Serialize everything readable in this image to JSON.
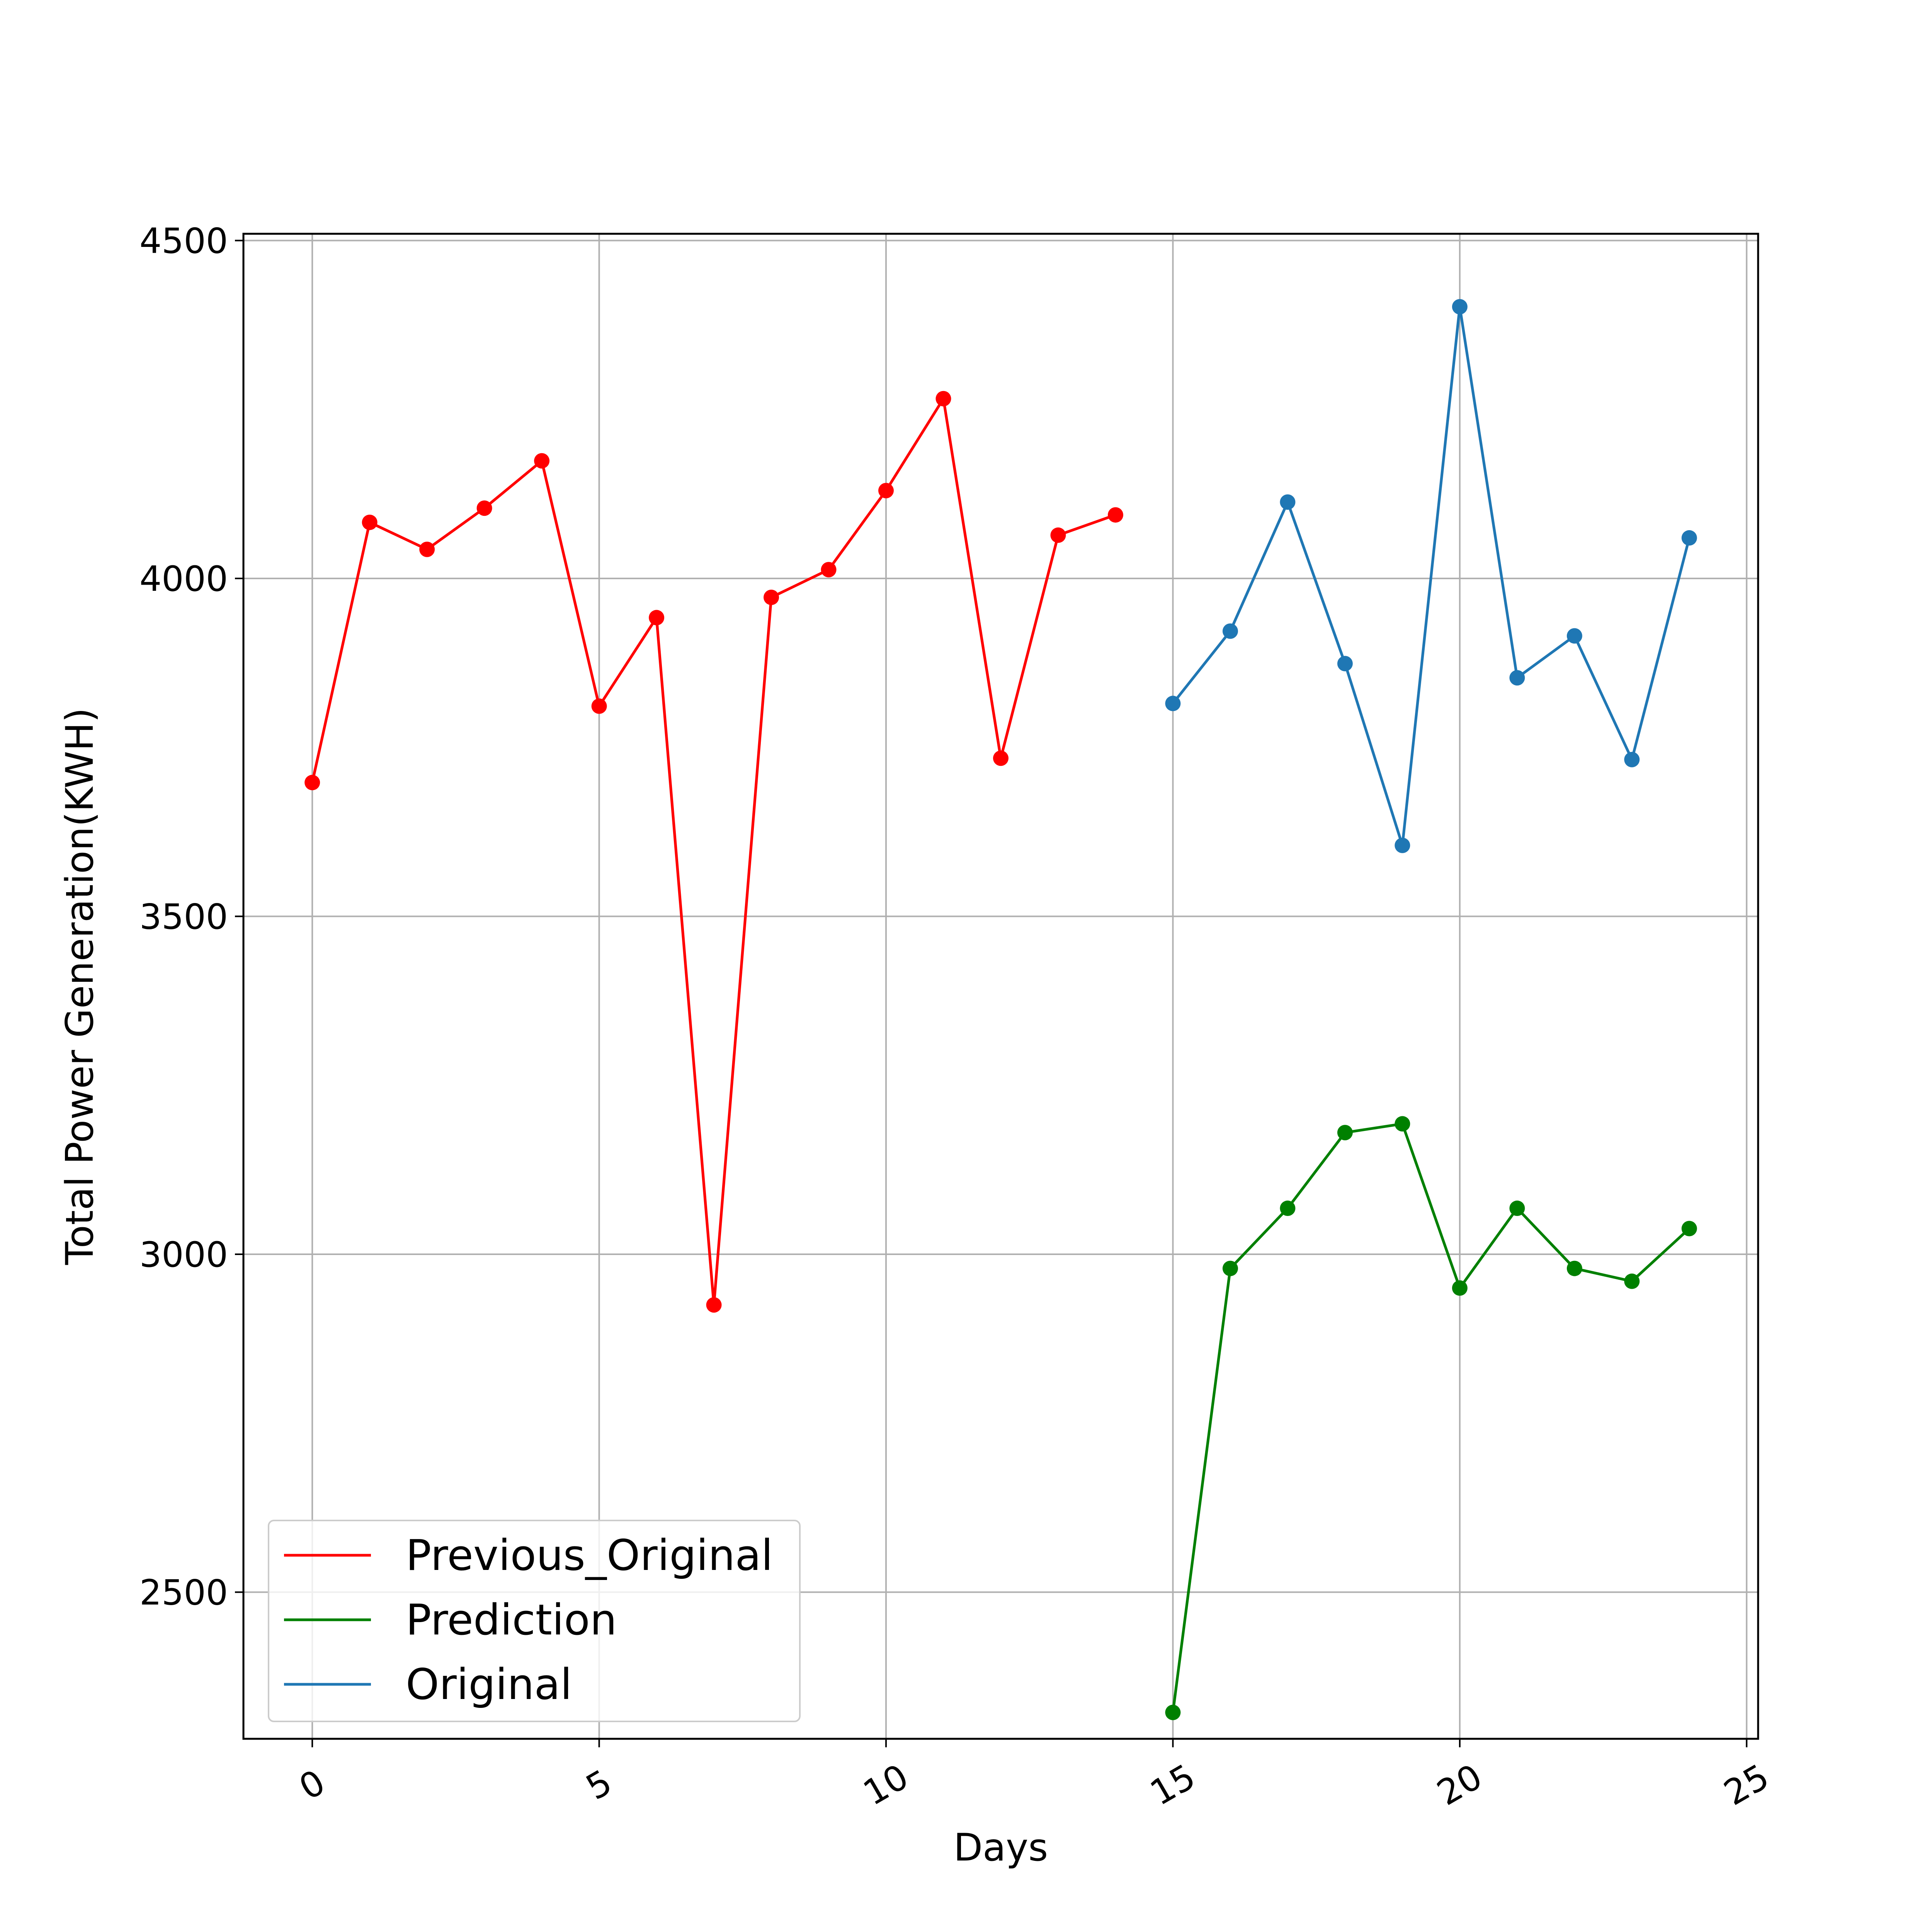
{
  "chart_data": {
    "type": "line",
    "title": "",
    "xlabel": "Days",
    "ylabel": "Total Power Generation(KWH)",
    "xlim": [
      -1.2,
      25.2
    ],
    "ylim": [
      2283,
      4510
    ],
    "xticks": [
      0,
      5,
      10,
      15,
      20,
      25
    ],
    "yticks": [
      2500,
      3000,
      3500,
      4000,
      4500
    ],
    "grid": true,
    "legend_position": "lower-left",
    "series": [
      {
        "name": "Previous_Original",
        "color": "#ff0000",
        "x": [
          0,
          1,
          2,
          3,
          4,
          5,
          6,
          7,
          8,
          9,
          10,
          11,
          12,
          13,
          14
        ],
        "y": [
          3698,
          4083,
          4043,
          4104,
          4174,
          3811,
          3942,
          2925,
          3972,
          4013,
          4130,
          4266,
          3734,
          4064,
          4094
        ]
      },
      {
        "name": "Prediction",
        "color": "#008000",
        "x": [
          15,
          16,
          17,
          18,
          19,
          20,
          21,
          22,
          23,
          24
        ],
        "y": [
          2322,
          2979,
          3068,
          3180,
          3193,
          2950,
          3068,
          2979,
          2960,
          3038
        ]
      },
      {
        "name": "Original",
        "color": "#1f77b4",
        "x": [
          15,
          16,
          17,
          18,
          19,
          20,
          21,
          22,
          23,
          24
        ],
        "y": [
          3815,
          3922,
          4113,
          3874,
          3605,
          4402,
          3853,
          3915,
          3732,
          4060
        ]
      }
    ]
  }
}
